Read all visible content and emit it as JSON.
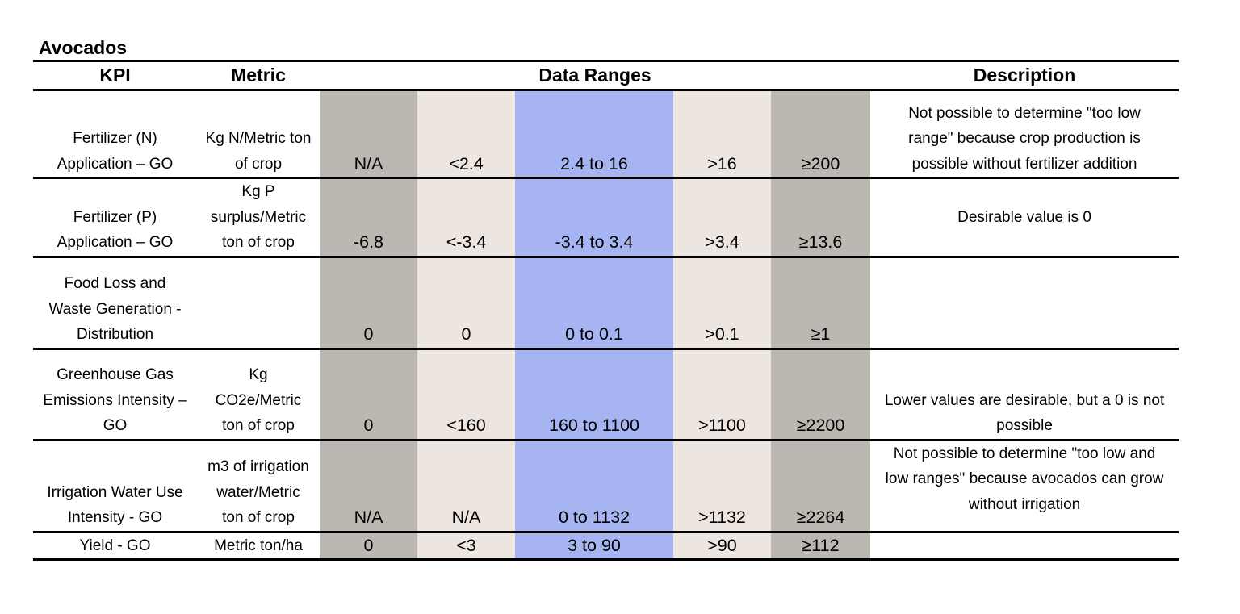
{
  "title": "Avocados",
  "colors": {
    "far_range": "#bbb8b1",
    "near_range": "#ede6e0",
    "target_range": "#a6b4f1",
    "rule": "#000000"
  },
  "headers": {
    "kpi": "KPI",
    "metric": "Metric",
    "data_ranges": "Data Ranges",
    "description": "Description"
  },
  "rows": [
    {
      "kpi": [
        "Fertilizer (N)",
        "Application – GO"
      ],
      "metric": [
        "Kg N/Metric ton",
        "of crop"
      ],
      "ranges": [
        "N/A",
        "<2.4",
        "2.4 to 16",
        ">16",
        "≥200"
      ],
      "description": [
        "Not possible to determine \"too low",
        "range\" because crop production is",
        "possible without fertilizer addition"
      ]
    },
    {
      "kpi": [
        "Fertilizer (P)",
        "Application – GO"
      ],
      "metric": [
        "Kg P",
        "surplus/Metric",
        "ton of crop"
      ],
      "ranges": [
        "-6.8",
        "<-3.4",
        "-3.4 to 3.4",
        ">3.4",
        "≥13.6"
      ],
      "description": [
        "Desirable value is 0"
      ]
    },
    {
      "kpi": [
        "Food Loss and",
        "Waste Generation -",
        "Distribution"
      ],
      "metric": [],
      "ranges": [
        "0",
        "0",
        "0 to 0.1",
        ">0.1",
        "≥1"
      ],
      "description": []
    },
    {
      "kpi": [
        "Greenhouse Gas",
        "Emissions Intensity –",
        "GO"
      ],
      "metric": [
        "Kg",
        "CO2e/Metric",
        "ton of crop"
      ],
      "ranges": [
        "0",
        "<160",
        "160 to 1100",
        ">1100",
        "≥2200"
      ],
      "description": [
        "Lower values are desirable, but a 0 is not",
        "possible"
      ]
    },
    {
      "kpi": [
        "Irrigation Water Use",
        "Intensity - GO"
      ],
      "metric": [
        "m3 of irrigation",
        "water/Metric",
        "ton of crop"
      ],
      "ranges": [
        "N/A",
        "N/A",
        "0 to 1132",
        ">1132",
        "≥2264"
      ],
      "description": [
        "Not possible to determine \"too low and",
        "low ranges\" because avocados can grow",
        "without irrigation"
      ]
    },
    {
      "kpi": [
        "Yield - GO"
      ],
      "metric": [
        "Metric ton/ha"
      ],
      "ranges": [
        "0",
        "<3",
        "3  to 90",
        ">90",
        "≥112"
      ],
      "description": []
    }
  ]
}
